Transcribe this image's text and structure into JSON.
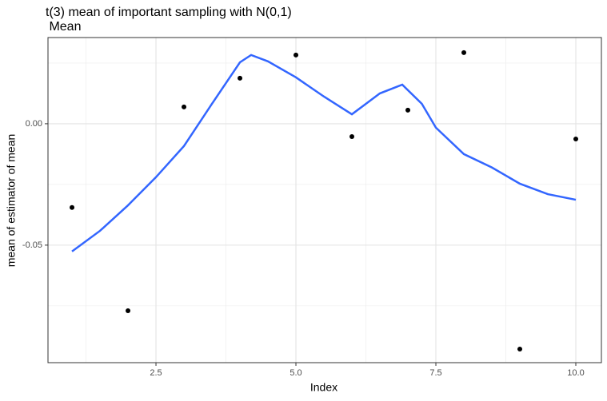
{
  "chart_data": {
    "type": "scatter",
    "title": "t(3) mean of important sampling with N(0,1)",
    "subtitle": " Mean",
    "x_label": "Index",
    "y_label": "mean of estimator of mean",
    "xlim": [
      0.571,
      10.457
    ],
    "ylim": [
      -0.0984,
      0.0355
    ],
    "xticks": [
      2.5,
      {
        "value": 5,
        "label": "5.0"
      },
      7.5,
      {
        "value": 10,
        "label": "10.0"
      }
    ],
    "yticks": [
      {
        "value": -0.05,
        "label": "-0.05"
      },
      {
        "value": 0,
        "label": "0.00"
      }
    ],
    "xminor": [
      1.25,
      3.75,
      6.25,
      8.75
    ],
    "yminor": [
      -0.075,
      -0.025,
      0.025
    ],
    "grid": true,
    "points": {
      "color": "#000000",
      "x": [
        1,
        2,
        3,
        4,
        5,
        6,
        7,
        8,
        9,
        10
      ],
      "values": [
        -0.0345,
        -0.077,
        0.0069,
        0.01875,
        0.0283,
        -0.0053,
        0.0056,
        0.0293,
        -0.0928,
        -0.0063
      ]
    },
    "smooth": {
      "color": "#3366ff",
      "x": [
        1,
        1.5,
        2,
        2.5,
        3,
        3.5,
        4,
        4.2,
        4.5,
        5,
        5.5,
        6,
        6.5,
        6.9,
        7.25,
        7.5,
        8,
        8.5,
        9,
        9.5,
        10
      ],
      "values": [
        -0.0526,
        -0.0441,
        -0.0336,
        -0.022,
        -0.0092,
        0.0082,
        0.0253,
        0.0283,
        0.0257,
        0.0191,
        0.0112,
        0.0039,
        0.0125,
        0.0161,
        0.0082,
        -0.0016,
        -0.0125,
        -0.018,
        -0.0247,
        -0.029,
        -0.0313
      ]
    }
  }
}
